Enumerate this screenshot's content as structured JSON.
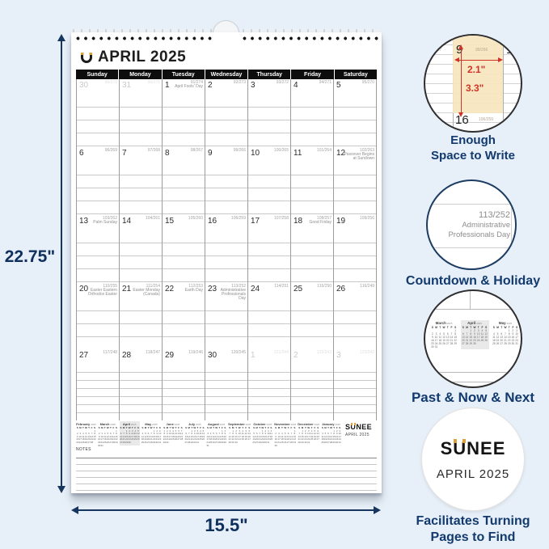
{
  "page": {
    "bg": "#e7eff8",
    "dim_height_label": "22.75\"",
    "dim_width_label": "15.5\"",
    "accent_navy": "#123a6e",
    "highlight_tan": "#f6e6bf",
    "dimension_red": "#cf3327",
    "brand_gold": "#d9a13c"
  },
  "calendar": {
    "logo_icon": "magnet-u-logo",
    "title": "APRIL 2025",
    "weekdays": [
      "Sunday",
      "Monday",
      "Tuesday",
      "Wednesday",
      "Thursday",
      "Friday",
      "Saturday"
    ],
    "weeks": [
      [
        {
          "d": "30",
          "c": "89/276",
          "m": true
        },
        {
          "d": "31",
          "c": "90/275",
          "m": true
        },
        {
          "d": "1",
          "c": "91/274",
          "n": "April Fools' Day"
        },
        {
          "d": "2",
          "c": "92/273"
        },
        {
          "d": "3",
          "c": "93/272"
        },
        {
          "d": "4",
          "c": "94/271"
        },
        {
          "d": "5",
          "c": "95/270"
        }
      ],
      [
        {
          "d": "6",
          "c": "96/269"
        },
        {
          "d": "7",
          "c": "97/268"
        },
        {
          "d": "8",
          "c": "98/267"
        },
        {
          "d": "9",
          "c": "99/266"
        },
        {
          "d": "10",
          "c": "100/265"
        },
        {
          "d": "11",
          "c": "101/264"
        },
        {
          "d": "12",
          "c": "102/263",
          "n": "Passover Begins at Sundown"
        }
      ],
      [
        {
          "d": "13",
          "c": "103/262",
          "n": "Palm Sunday"
        },
        {
          "d": "14",
          "c": "104/261"
        },
        {
          "d": "15",
          "c": "105/260"
        },
        {
          "d": "16",
          "c": "106/259"
        },
        {
          "d": "17",
          "c": "107/258"
        },
        {
          "d": "18",
          "c": "108/257",
          "n": "Good Friday"
        },
        {
          "d": "19",
          "c": "109/256"
        }
      ],
      [
        {
          "d": "20",
          "c": "110/255",
          "n": "Easter Eastern Orthodox Easter"
        },
        {
          "d": "21",
          "c": "111/254",
          "n": "Easter Monday (Canada)"
        },
        {
          "d": "22",
          "c": "112/253",
          "n": "Earth Day"
        },
        {
          "d": "23",
          "c": "113/252",
          "n": "Administrative Professionals Day"
        },
        {
          "d": "24",
          "c": "114/251"
        },
        {
          "d": "25",
          "c": "115/250"
        },
        {
          "d": "26",
          "c": "116/249"
        }
      ],
      [
        {
          "d": "27",
          "c": "117/248"
        },
        {
          "d": "28",
          "c": "118/247"
        },
        {
          "d": "29",
          "c": "119/246"
        },
        {
          "d": "30",
          "c": "120/245"
        },
        {
          "d": "1",
          "c": "121/244",
          "m": true
        },
        {
          "d": "2",
          "c": "122/243",
          "m": true
        },
        {
          "d": "3",
          "c": "123/242",
          "m": true
        }
      ]
    ],
    "mini_weekday_letters": [
      "S",
      "M",
      "T",
      "W",
      "T",
      "F",
      "S"
    ],
    "mini_months": [
      {
        "name": "February",
        "year": "2025",
        "start": 6,
        "days": 28
      },
      {
        "name": "March",
        "year": "2025",
        "start": 6,
        "days": 31
      },
      {
        "name": "April",
        "year": "2025",
        "start": 2,
        "days": 30,
        "current": true
      },
      {
        "name": "May",
        "year": "2025",
        "start": 4,
        "days": 31
      },
      {
        "name": "June",
        "year": "2025",
        "start": 0,
        "days": 30
      },
      {
        "name": "July",
        "year": "2025",
        "start": 2,
        "days": 31
      },
      {
        "name": "August",
        "year": "2025",
        "start": 5,
        "days": 31
      },
      {
        "name": "September",
        "year": "2025",
        "start": 1,
        "days": 30
      },
      {
        "name": "October",
        "year": "2025",
        "start": 3,
        "days": 31
      },
      {
        "name": "November",
        "year": "2025",
        "start": 6,
        "days": 30
      },
      {
        "name": "December",
        "year": "2025",
        "start": 1,
        "days": 31
      },
      {
        "name": "January",
        "year": "2026",
        "start": 4,
        "days": 31
      }
    ],
    "brand": "SUNEE",
    "brand_s": "S",
    "brand_u": "U",
    "brand_nee": "NEE",
    "brand_month": "APRIL 2025",
    "notes_label": "NOTES"
  },
  "callouts": [
    {
      "caption_lines": [
        "Enough",
        "Space to Write"
      ],
      "detail": {
        "count_left": "98/267",
        "day_a": "9",
        "count_a": "99/266",
        "day_b": "10",
        "day_c": "16",
        "count_c": "106/259",
        "width_label": "2.1\"",
        "height_label": "3.3\""
      }
    },
    {
      "caption_lines": [
        "Countdown & Holiday"
      ],
      "detail": {
        "lines": [
          "113/252",
          "Administrative",
          "Professionals Day"
        ]
      }
    },
    {
      "caption_lines": [
        "Past &  Now & Next"
      ],
      "detail": {
        "months": [
          {
            "name": "March",
            "year": "2025",
            "start": 6,
            "days": 31
          },
          {
            "name": "April",
            "year": "2025",
            "start": 2,
            "days": 30,
            "current": true
          },
          {
            "name": "May",
            "year": "2025",
            "start": 4,
            "days": 31
          }
        ]
      }
    },
    {
      "caption_lines": [
        "Facilitates Turning",
        "Pages to Find"
      ],
      "detail": {
        "brand_s": "S",
        "brand_u": "U",
        "brand_nee": "NEE",
        "month": "APRIL 2025"
      }
    }
  ]
}
